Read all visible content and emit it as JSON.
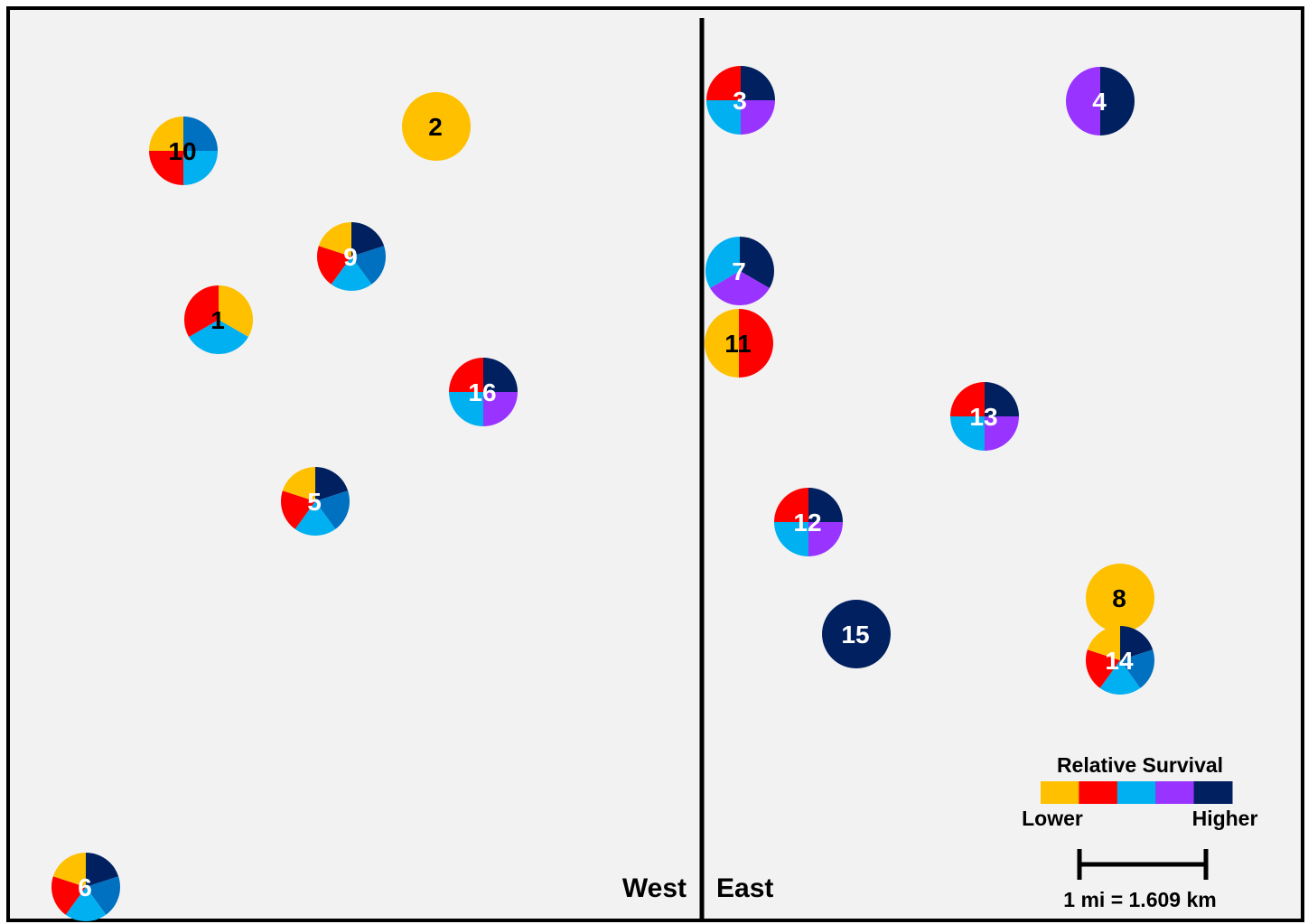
{
  "colors": {
    "background": "#f2f2f2",
    "frame": "#000000",
    "gold": "#FFC000",
    "red": "#FF0000",
    "sky": "#00B0F0",
    "blue": "#0070C0",
    "purple": "#9933FF",
    "navy": "#002060"
  },
  "regions": {
    "west": "West",
    "east": "East"
  },
  "sites": [
    {
      "label": "1",
      "label_color": "#000000",
      "slices": [
        [
          "gold",
          1
        ],
        [
          "sky",
          1
        ],
        [
          "red",
          1
        ]
      ]
    },
    {
      "label": "2",
      "label_color": "#000000",
      "slices": [
        [
          "gold",
          1
        ]
      ]
    },
    {
      "label": "3",
      "label_color": "#ffffff",
      "slices": [
        [
          "navy",
          1
        ],
        [
          "purple",
          1
        ],
        [
          "sky",
          1
        ],
        [
          "red",
          1
        ]
      ]
    },
    {
      "label": "4",
      "label_color": "#ffffff",
      "slices": [
        [
          "navy",
          1
        ],
        [
          "purple",
          1
        ]
      ]
    },
    {
      "label": "5",
      "label_color": "#ffffff",
      "slices": [
        [
          "navy",
          1
        ],
        [
          "blue",
          1
        ],
        [
          "sky",
          1
        ],
        [
          "red",
          1
        ],
        [
          "gold",
          1
        ]
      ]
    },
    {
      "label": "6",
      "label_color": "#ffffff",
      "slices": [
        [
          "navy",
          1
        ],
        [
          "blue",
          1
        ],
        [
          "sky",
          1
        ],
        [
          "red",
          1
        ],
        [
          "gold",
          1
        ]
      ]
    },
    {
      "label": "7",
      "label_color": "#ffffff",
      "slices": [
        [
          "navy",
          1
        ],
        [
          "purple",
          1
        ],
        [
          "sky",
          1
        ]
      ]
    },
    {
      "label": "8",
      "label_color": "#000000",
      "slices": [
        [
          "gold",
          1
        ]
      ]
    },
    {
      "label": "9",
      "label_color": "#ffffff",
      "slices": [
        [
          "navy",
          1
        ],
        [
          "blue",
          1
        ],
        [
          "sky",
          1
        ],
        [
          "red",
          1
        ],
        [
          "gold",
          1
        ]
      ]
    },
    {
      "label": "10",
      "label_color": "#000000",
      "slices": [
        [
          "blue",
          1
        ],
        [
          "sky",
          1
        ],
        [
          "red",
          1
        ],
        [
          "gold",
          1
        ]
      ]
    },
    {
      "label": "11",
      "label_color": "#000000",
      "slices": [
        [
          "red",
          1
        ],
        [
          "gold",
          1
        ]
      ]
    },
    {
      "label": "12",
      "label_color": "#ffffff",
      "slices": [
        [
          "navy",
          1
        ],
        [
          "purple",
          1
        ],
        [
          "sky",
          1
        ],
        [
          "red",
          1
        ]
      ]
    },
    {
      "label": "13",
      "label_color": "#ffffff",
      "slices": [
        [
          "navy",
          1
        ],
        [
          "purple",
          1
        ],
        [
          "sky",
          1
        ],
        [
          "red",
          1
        ]
      ]
    },
    {
      "label": "14",
      "label_color": "#ffffff",
      "slices": [
        [
          "navy",
          1
        ],
        [
          "blue",
          1
        ],
        [
          "sky",
          1
        ],
        [
          "red",
          1
        ],
        [
          "gold",
          1
        ]
      ]
    },
    {
      "label": "15",
      "label_color": "#ffffff",
      "slices": [
        [
          "navy",
          1
        ]
      ]
    },
    {
      "label": "16",
      "label_color": "#ffffff",
      "slices": [
        [
          "navy",
          1
        ],
        [
          "purple",
          1
        ],
        [
          "sky",
          1
        ],
        [
          "red",
          1
        ]
      ]
    }
  ],
  "legend": {
    "title": "Relative Survival",
    "low_label": "Lower",
    "high_label": "Higher",
    "scale": [
      "gold",
      "red",
      "sky",
      "purple",
      "navy"
    ]
  },
  "scale_bar": {
    "label": "1 mi = 1.609 km"
  }
}
